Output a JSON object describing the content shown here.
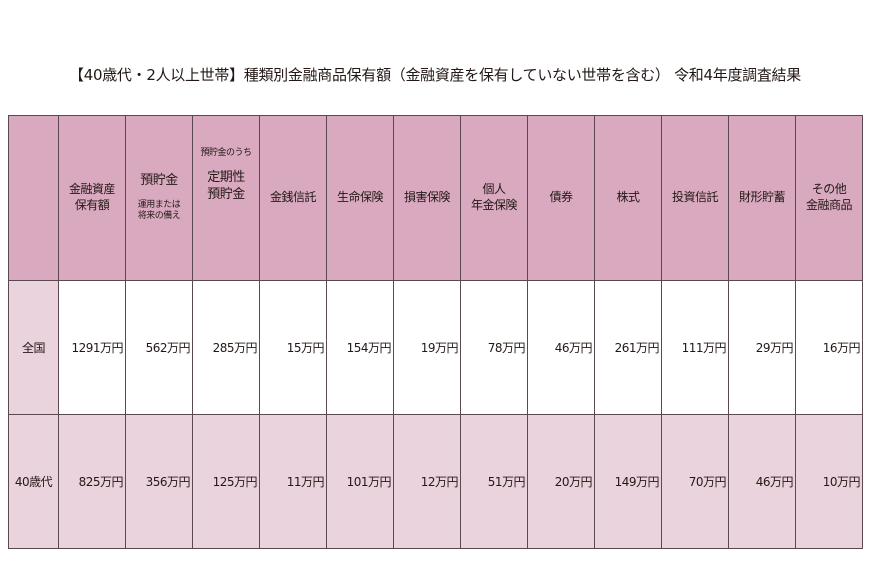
{
  "title": "【40歳代・2人以上世帯】種類別金融商品保有額（金融資産を保有していない世帯を含む） 令和4年度調査結果",
  "headers": [
    {
      "lines": [
        "金融資産",
        "保有額"
      ]
    },
    {
      "main": "預貯金",
      "sub": [
        "運用または",
        "将来の備え"
      ]
    },
    {
      "pre": "預貯金のうち",
      "lines": [
        "定期性",
        "預貯金"
      ]
    },
    {
      "lines": [
        "金銭信託"
      ]
    },
    {
      "lines": [
        "生命保険"
      ]
    },
    {
      "lines": [
        "損害保険"
      ]
    },
    {
      "lines": [
        "個人",
        "年金保険"
      ]
    },
    {
      "lines": [
        "債券"
      ]
    },
    {
      "lines": [
        "株式"
      ]
    },
    {
      "lines": [
        "投資信託"
      ]
    },
    {
      "lines": [
        "財形貯蓄"
      ]
    },
    {
      "lines": [
        "その他",
        "金融商品"
      ]
    }
  ],
  "rows": [
    {
      "label": "全国",
      "values": [
        "1291万円",
        "562万円",
        "285万円",
        "15万円",
        "154万円",
        "19万円",
        "78万円",
        "46万円",
        "261万円",
        "111万円",
        "29万円",
        "16万円"
      ]
    },
    {
      "label": "40歳代",
      "values": [
        "825万円",
        "356万円",
        "125万円",
        "11万円",
        "101万円",
        "12万円",
        "51万円",
        "20万円",
        "149万円",
        "70万円",
        "46万円",
        "10万円"
      ]
    }
  ],
  "colors": {
    "header": "#d9a9bf",
    "row_alt": "#ebd3de",
    "border": "#5a4a50"
  }
}
